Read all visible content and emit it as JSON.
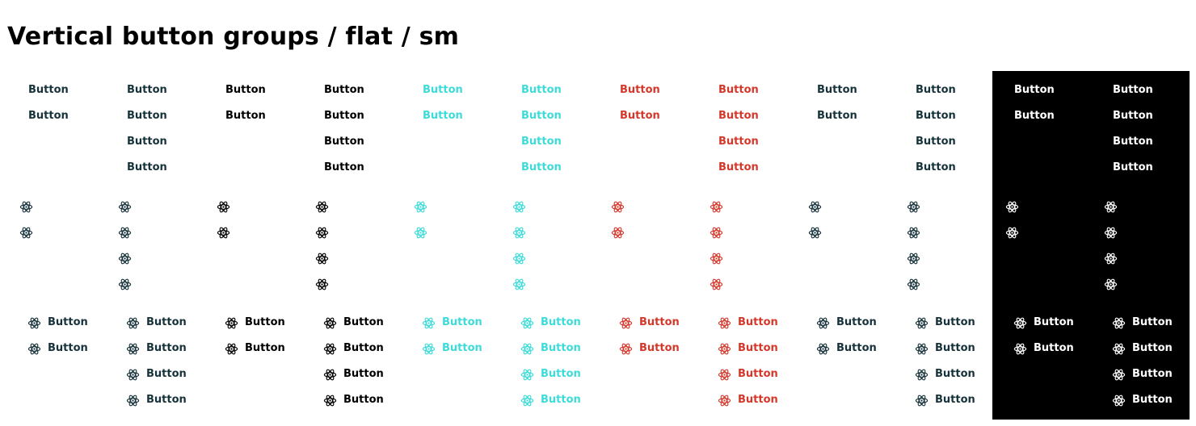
{
  "page": {
    "title": "Vertical button groups / flat / sm"
  },
  "button_label": "Button",
  "icon": "atom-icon",
  "colors": {
    "default": "#16323a",
    "black": "#000000",
    "cyan": "#3ddbd9",
    "red": "#d4382b",
    "inverse": "#ffffff",
    "dark_background": "#000000"
  },
  "variants": [
    {
      "name": "default",
      "color": "default",
      "counts": [
        2,
        4
      ]
    },
    {
      "name": "black",
      "color": "black",
      "counts": [
        2,
        4
      ]
    },
    {
      "name": "cyan",
      "color": "cyan",
      "counts": [
        2,
        4
      ]
    },
    {
      "name": "red",
      "color": "red",
      "counts": [
        2,
        4
      ]
    },
    {
      "name": "default-secondary",
      "color": "default",
      "counts": [
        2,
        4
      ]
    },
    {
      "name": "inverse",
      "color": "inverse",
      "counts": [
        2,
        4
      ],
      "on_dark": true
    }
  ],
  "rows": [
    {
      "name": "text-only",
      "kind": "text"
    },
    {
      "name": "icon-only",
      "kind": "icon"
    },
    {
      "name": "icon-and-text",
      "kind": "icon-text"
    }
  ]
}
